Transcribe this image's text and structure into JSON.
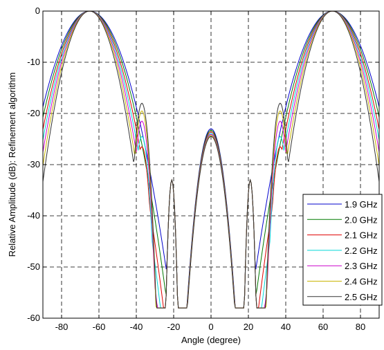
{
  "chart_data": {
    "type": "line",
    "xlabel": "Angle (degree)",
    "ylabel": "Relative Amplitude (dB): Refinement algorithm",
    "xlim": [
      -90,
      90
    ],
    "ylim": [
      -60,
      0
    ],
    "xticks": [
      -80,
      -60,
      -40,
      -20,
      0,
      20,
      40,
      60,
      80
    ],
    "yticks": [
      0,
      -10,
      -20,
      -30,
      -40,
      -50,
      -60
    ],
    "grid": true,
    "grid_style": "dashed",
    "legend_position": "lower-right",
    "series": [
      {
        "name": "1.9 GHz",
        "color": "#0000cc",
        "peak_angle": 65,
        "beamwidth": 40,
        "sidelobe_level_dB": -28.5,
        "sidelobe_angle": 36,
        "center_lobe_dB": -23.0,
        "floor_dB": -58
      },
      {
        "name": "2.0 GHz",
        "color": "#007a00",
        "peak_angle": 65,
        "beamwidth": 38,
        "sidelobe_level_dB": -27.5,
        "sidelobe_angle": 37,
        "center_lobe_dB": -23.3,
        "floor_dB": -58
      },
      {
        "name": "2.1 GHz",
        "color": "#e00000",
        "peak_angle": 65,
        "beamwidth": 36,
        "sidelobe_level_dB": -26.5,
        "sidelobe_angle": 37,
        "center_lobe_dB": -23.6,
        "floor_dB": -58
      },
      {
        "name": "2.2 GHz",
        "color": "#00d8d8",
        "peak_angle": 65,
        "beamwidth": 34.5,
        "sidelobe_level_dB": -24.5,
        "sidelobe_angle": 37,
        "center_lobe_dB": -23.9,
        "floor_dB": -58
      },
      {
        "name": "2.3 GHz",
        "color": "#cc00cc",
        "peak_angle": 65,
        "beamwidth": 33,
        "sidelobe_level_dB": -21.5,
        "sidelobe_angle": 37,
        "center_lobe_dB": -24.1,
        "floor_dB": -58
      },
      {
        "name": "2.4 GHz",
        "color": "#c8b400",
        "peak_angle": 65,
        "beamwidth": 31.5,
        "sidelobe_level_dB": -19.5,
        "sidelobe_angle": 37,
        "center_lobe_dB": -24.3,
        "floor_dB": -58
      },
      {
        "name": "2.5 GHz",
        "color": "#333333",
        "peak_angle": 65,
        "beamwidth": 30,
        "sidelobe_level_dB": -18.0,
        "sidelobe_angle": 37,
        "center_lobe_dB": -24.5,
        "floor_dB": -58
      }
    ]
  }
}
